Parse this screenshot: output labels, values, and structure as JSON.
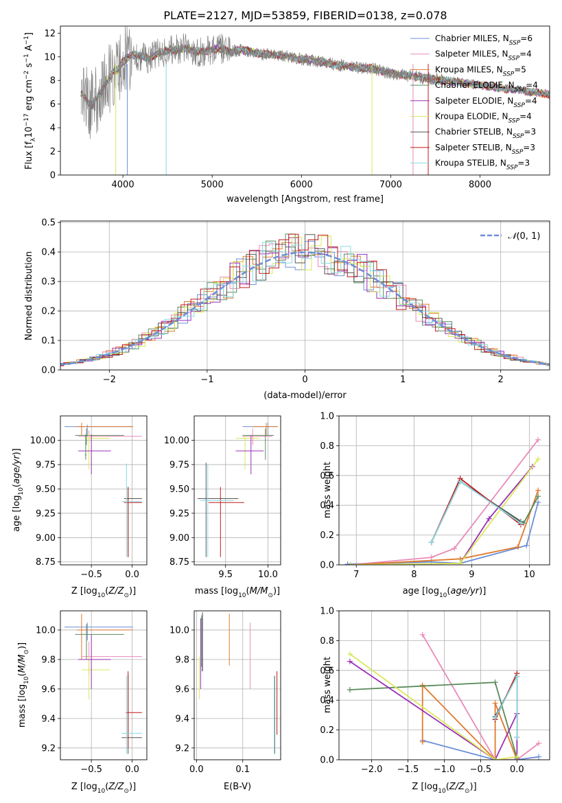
{
  "figure_title": "PLATE=2127, MJD=53859, FIBERID=0138, z=0.078",
  "colors": {
    "Chabrier MILES": "#6b8fd8",
    "Salpeter MILES": "#e98ab8",
    "Kroupa MILES": "#e0782a",
    "Chabrier ELODIE": "#5a8a5a",
    "Salpeter ELODIE": "#9b2fb5",
    "Kroupa ELODIE": "#d9e85a",
    "Chabrier STELIB": "#555555",
    "Salpeter STELIB": "#c01818",
    "Kroupa STELIB": "#88d8e0",
    "data": "#808080",
    "normal": "#6b8fd8"
  },
  "chart_data": [
    {
      "id": "spectrum",
      "type": "line",
      "xlabel": "wavelength [Angstrom, rest frame]",
      "ylabel": "Flux [f_λ10^-17 erg cm^-2 s^-1 A^-1]",
      "xlim": [
        3300,
        8780
      ],
      "ylim": [
        0,
        12.6
      ],
      "xticks": [
        4000,
        5000,
        6000,
        7000,
        8000
      ],
      "yticks": [
        0,
        2,
        4,
        6,
        8,
        10,
        12
      ],
      "legend": [
        "Chabrier MILES, N_SSP=6",
        "Salpeter MILES, N_SSP=4",
        "Kroupa MILES, N_SSP=5",
        "Chabrier ELODIE, N_SSP=4",
        "Salpeter ELODIE, N_SSP=4",
        "Kroupa ELODIE, N_SSP=4",
        "Chabrier STELIB, N_SSP=3",
        "Salpeter STELIB, N_SSP=3",
        "Kroupa STELIB, N_SSP=3"
      ],
      "legend_position": "right",
      "series": [
        {
          "x": [
            3550,
            3600,
            3650,
            3700,
            3750,
            3800,
            3850,
            3900,
            3950,
            4000,
            4100,
            4200,
            4300,
            4400,
            4500,
            4600,
            4700,
            4800,
            4900,
            5000,
            5100,
            5200,
            5300,
            5400,
            5500,
            5600,
            5700,
            5800,
            5900,
            6000,
            6200,
            6400,
            6600,
            6800,
            7000,
            7200,
            7400,
            7600,
            7800,
            8000,
            8200,
            8400,
            8600,
            8780
          ],
          "y": [
            6.8,
            6.3,
            5.9,
            6.4,
            6.9,
            7.6,
            8.2,
            8.8,
            8.9,
            9.6,
            10.2,
            10.0,
            9.9,
            10.3,
            10.5,
            10.6,
            10.7,
            10.5,
            10.4,
            10.6,
            10.7,
            10.4,
            10.6,
            10.5,
            10.3,
            10.2,
            10.2,
            10.1,
            9.9,
            9.8,
            9.6,
            9.3,
            9.1,
            9.0,
            8.6,
            8.4,
            8.2,
            8.0,
            7.8,
            7.6,
            7.4,
            7.2,
            7.0,
            6.8
          ]
        }
      ]
    },
    {
      "id": "residuals",
      "type": "bar",
      "xlabel": "(data-model)/error",
      "ylabel": "Normed distribution",
      "xlim": [
        -2.5,
        2.5
      ],
      "ylim": [
        0,
        0.505
      ],
      "xticks": [
        -2,
        -1,
        0,
        1,
        2
      ],
      "yticks": [
        0.0,
        0.1,
        0.2,
        0.3,
        0.4,
        0.5
      ],
      "legend": [
        "𝒩(0, 1)"
      ],
      "legend_position": "top-right",
      "grid": true
    },
    {
      "id": "age_vs_Z",
      "type": "scatter",
      "xlabel": "Z [log10(Z/Z⊙)]",
      "ylabel": "age [log10(age/yr)]",
      "xlim": [
        -0.88,
        0.18
      ],
      "ylim": [
        8.72,
        10.25
      ],
      "xticks": [
        -0.5,
        0.0
      ],
      "yticks": [
        8.75,
        9.0,
        9.25,
        9.5,
        9.75,
        10.0
      ],
      "grid": true
    },
    {
      "id": "age_vs_mass",
      "type": "scatter",
      "xlabel": "mass [log10(M/M⊙)]",
      "xlim": [
        9.13,
        10.15
      ],
      "ylim": [
        8.72,
        10.25
      ],
      "xticks": [
        9.5,
        10.0
      ],
      "yticks": [
        8.75,
        9.0,
        9.25,
        9.5,
        9.75,
        10.0
      ],
      "grid": true
    },
    {
      "id": "weight_vs_age",
      "type": "line",
      "xlabel": "age [log10(age/yr)]",
      "ylabel": "mass weight",
      "xlim": [
        6.7,
        10.35
      ],
      "ylim": [
        0,
        1.0
      ],
      "xticks": [
        7,
        8,
        9,
        10
      ],
      "yticks": [
        0.0,
        0.2,
        0.4,
        0.6,
        0.8,
        1.0
      ],
      "grid": true,
      "series": [
        {
          "name": "Chabrier MILES",
          "x": [
            6.85,
            8.3,
            8.8,
            9.95,
            10.15
          ],
          "y": [
            0.005,
            0.02,
            0.01,
            0.13,
            0.42
          ]
        },
        {
          "name": "Salpeter MILES",
          "x": [
            6.9,
            8.3,
            8.7,
            10.15
          ],
          "y": [
            0.0,
            0.05,
            0.11,
            0.84
          ]
        },
        {
          "name": "Kroupa MILES",
          "x": [
            6.9,
            8.8,
            9.8,
            10.15
          ],
          "y": [
            0.0,
            0.04,
            0.12,
            0.5
          ]
        },
        {
          "name": "Chabrier ELODIE",
          "x": [
            8.3,
            8.8,
            9.9,
            10.15
          ],
          "y": [
            0.15,
            0.56,
            0.28,
            0.46
          ]
        },
        {
          "name": "Salpeter ELODIE",
          "x": [
            6.9,
            8.8,
            9.3,
            10.05
          ],
          "y": [
            0.0,
            0.01,
            0.31,
            0.66
          ]
        },
        {
          "name": "Kroupa ELODIE",
          "x": [
            6.9,
            8.8,
            10.15
          ],
          "y": [
            0.0,
            0.01,
            0.71
          ]
        },
        {
          "name": "Chabrier STELIB",
          "x": [
            8.3,
            8.8,
            9.85
          ],
          "y": [
            0.15,
            0.56,
            0.29
          ]
        },
        {
          "name": "Salpeter STELIB",
          "x": [
            8.3,
            8.8,
            9.85
          ],
          "y": [
            0.15,
            0.58,
            0.27
          ]
        },
        {
          "name": "Kroupa STELIB",
          "x": [
            8.3,
            8.8,
            9.85
          ],
          "y": [
            0.15,
            0.56,
            0.28
          ]
        }
      ]
    },
    {
      "id": "mass_vs_Z",
      "type": "scatter",
      "xlabel": "Z [log10(Z/Z⊙)]",
      "ylabel": "mass [log10(M/M⊙)]",
      "xlim": [
        -0.88,
        0.18
      ],
      "ylim": [
        9.12,
        10.13
      ],
      "xticks": [
        -0.5,
        0.0
      ],
      "yticks": [
        9.2,
        9.4,
        9.6,
        9.8,
        10.0
      ],
      "grid": true
    },
    {
      "id": "mass_vs_ebv",
      "type": "scatter",
      "xlabel": "E(B-V)",
      "xlim": [
        -0.005,
        0.182
      ],
      "ylim": [
        9.12,
        10.13
      ],
      "xticks": [
        0.0,
        0.1
      ],
      "yticks": [
        9.2,
        9.4,
        9.6,
        9.8,
        10.0
      ],
      "grid": true
    },
    {
      "id": "weight_vs_Z",
      "type": "line",
      "xlabel": "Z [log10(Z/Z⊙)]",
      "ylabel": "mass weight",
      "xlim": [
        -2.45,
        0.45
      ],
      "ylim": [
        0,
        1.0
      ],
      "xticks": [
        -2.0,
        -1.5,
        -1.0,
        -0.5,
        0.0
      ],
      "yticks": [
        0.0,
        0.2,
        0.4,
        0.6,
        0.8,
        1.0
      ],
      "grid": true,
      "series": [
        {
          "name": "Chabrier MILES",
          "x": [
            -1.3,
            -0.3,
            0.0,
            0.3
          ],
          "y": [
            0.13,
            0.0,
            0.0,
            0.02
          ]
        },
        {
          "name": "Salpeter MILES",
          "x": [
            -1.3,
            -0.3,
            0.0,
            0.3
          ],
          "y": [
            0.84,
            0.0,
            0.0,
            0.11
          ]
        },
        {
          "name": "Kroupa MILES",
          "x": [
            -1.3,
            -1.3,
            -0.3,
            -0.3,
            0.0
          ],
          "y": [
            0.12,
            0.5,
            0.0,
            0.38,
            0.0
          ]
        },
        {
          "name": "Chabrier ELODIE",
          "x": [
            -2.3,
            -0.3,
            0.0
          ],
          "y": [
            0.47,
            0.52,
            0.01
          ]
        },
        {
          "name": "Salpeter ELODIE",
          "x": [
            -2.3,
            -0.3,
            0.0,
            0.0
          ],
          "y": [
            0.66,
            0.0,
            0.31,
            0.0
          ]
        },
        {
          "name": "Kroupa ELODIE",
          "x": [
            -2.3,
            -0.3,
            0.0
          ],
          "y": [
            0.71,
            0.0,
            0.02
          ]
        },
        {
          "name": "Chabrier STELIB",
          "x": [
            -0.3,
            0.0,
            0.0
          ],
          "y": [
            0.29,
            0.56,
            0.15
          ]
        },
        {
          "name": "Salpeter STELIB",
          "x": [
            -0.3,
            0.0,
            0.0
          ],
          "y": [
            0.27,
            0.58,
            0.15
          ]
        },
        {
          "name": "Kroupa STELIB",
          "x": [
            -0.3,
            0.0,
            0.0
          ],
          "y": [
            0.28,
            0.56,
            0.15
          ]
        }
      ]
    }
  ]
}
